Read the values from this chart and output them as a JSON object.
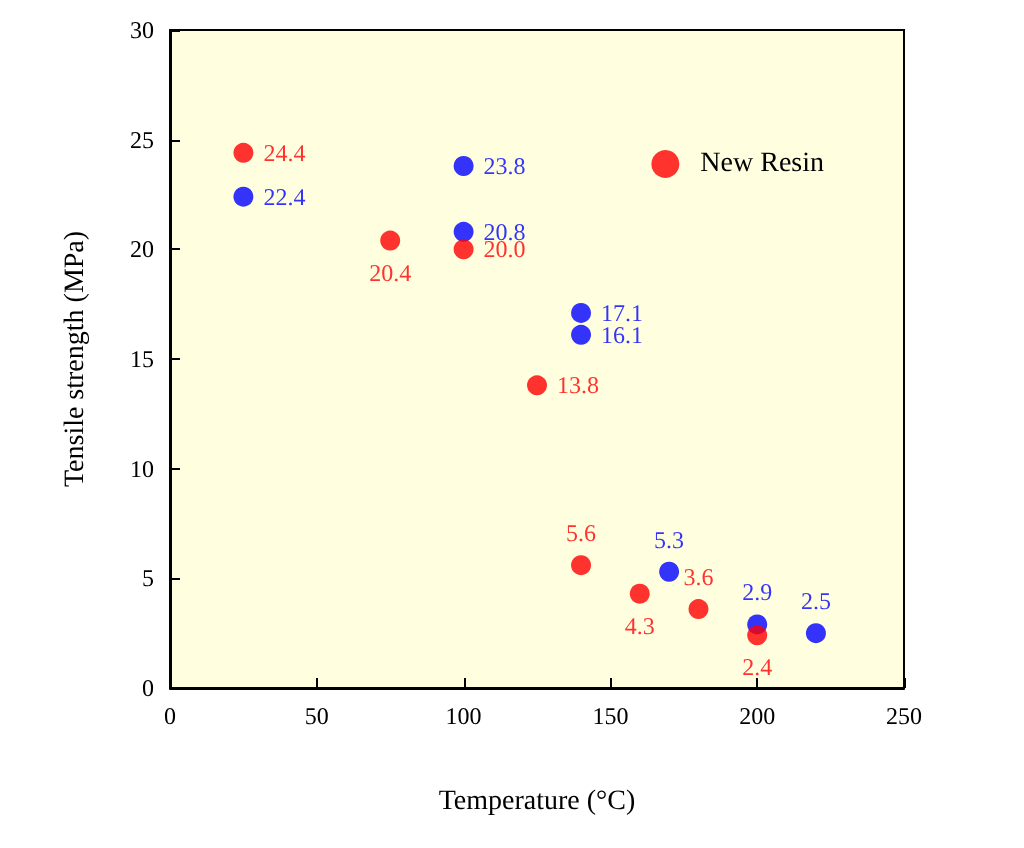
{
  "chart_data": {
    "type": "scatter",
    "xlabel": "Temperature (°C)",
    "ylabel": "Tensile strength (MPa)",
    "xlim": [
      0,
      250
    ],
    "xticks": [
      0,
      50,
      100,
      150,
      200,
      250
    ],
    "ylim": [
      0,
      30
    ],
    "yticks": [
      0,
      5,
      10,
      15,
      20,
      25,
      30
    ],
    "grid": false,
    "legend": "top right",
    "marker": "circle",
    "series": [
      {
        "color": "#0000ff",
        "x": [
          25,
          100,
          100,
          140,
          140,
          170,
          200,
          220
        ],
        "values": [
          22.4,
          23.8,
          20.8,
          17.1,
          16.1,
          5.3,
          2.9,
          2.5
        ],
        "value_labels": [
          "22.4",
          "23.8",
          "20.8",
          "17.1",
          "16.1",
          "5.3",
          "2.9",
          "2.5"
        ]
      },
      {
        "name": "New Resin",
        "color": "#ff0000",
        "x": [
          25,
          75,
          100,
          125,
          140,
          160,
          180,
          200
        ],
        "values": [
          24.4,
          20.4,
          20.0,
          13.8,
          5.6,
          4.3,
          3.6,
          2.4
        ],
        "value_labels": [
          "24.4",
          "20.4",
          "20.0",
          "13.8",
          "5.6",
          "4.3",
          "3.6",
          "2.4"
        ]
      }
    ]
  }
}
